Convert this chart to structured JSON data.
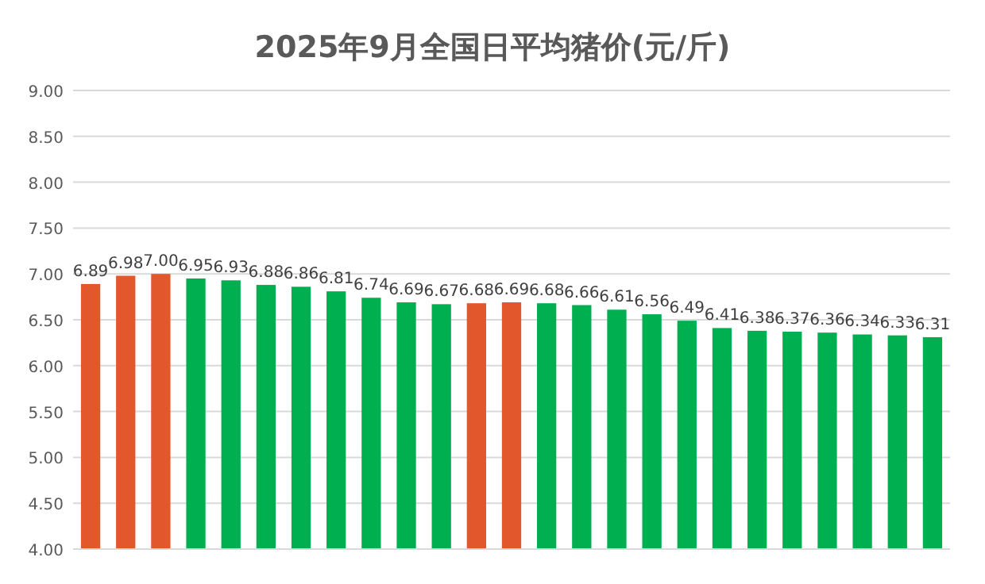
{
  "chart_data": {
    "type": "bar",
    "title": "2025年9月全国日平均猪价(元/斤)",
    "categories": [
      null,
      null,
      null,
      null,
      null,
      null,
      null,
      null,
      null,
      null,
      null,
      null,
      null,
      null,
      null,
      null,
      null,
      null,
      null,
      null,
      null,
      null,
      null,
      null,
      null
    ],
    "values": [
      6.89,
      6.98,
      7.0,
      6.95,
      6.93,
      6.88,
      6.86,
      6.81,
      6.74,
      6.69,
      6.67,
      6.68,
      6.69,
      6.68,
      6.66,
      6.61,
      6.56,
      6.49,
      6.41,
      6.38,
      6.37,
      6.36,
      6.34,
      6.33,
      6.31
    ],
    "value_labels": [
      "6.89",
      "6.98",
      "7.00",
      "6.95",
      "6.93",
      "6.88",
      "6.86",
      "6.81",
      "6.74",
      "6.69",
      "6.67",
      "6.68",
      "6.69",
      "6.68",
      "6.66",
      "6.61",
      "6.56",
      "6.49",
      "6.41",
      "6.38",
      "6.37",
      "6.36",
      "6.34",
      "6.33",
      "6.31"
    ],
    "colors": [
      "#e2572b",
      "#e2572b",
      "#e2572b",
      "#00b050",
      "#00b050",
      "#00b050",
      "#00b050",
      "#00b050",
      "#00b050",
      "#00b050",
      "#00b050",
      "#e2572b",
      "#e2572b",
      "#00b050",
      "#00b050",
      "#00b050",
      "#00b050",
      "#00b050",
      "#00b050",
      "#00b050",
      "#00b050",
      "#00b050",
      "#00b050",
      "#00b050",
      "#00b050"
    ],
    "ylim": [
      4,
      9
    ],
    "yticks": [
      {
        "value": 4,
        "label": "4.00"
      },
      {
        "value": 4.5,
        "label": "4.50"
      },
      {
        "value": 5,
        "label": "5.00"
      },
      {
        "value": 5.5,
        "label": "5.50"
      },
      {
        "value": 6,
        "label": "6.00"
      },
      {
        "value": 6.5,
        "label": "6.50"
      },
      {
        "value": 7,
        "label": "7.00"
      },
      {
        "value": 7.5,
        "label": "7.50"
      },
      {
        "value": 8,
        "label": "8.00"
      },
      {
        "value": 8.5,
        "label": "8.50"
      },
      {
        "value": 9,
        "label": "9.00"
      }
    ],
    "grid": "y"
  }
}
